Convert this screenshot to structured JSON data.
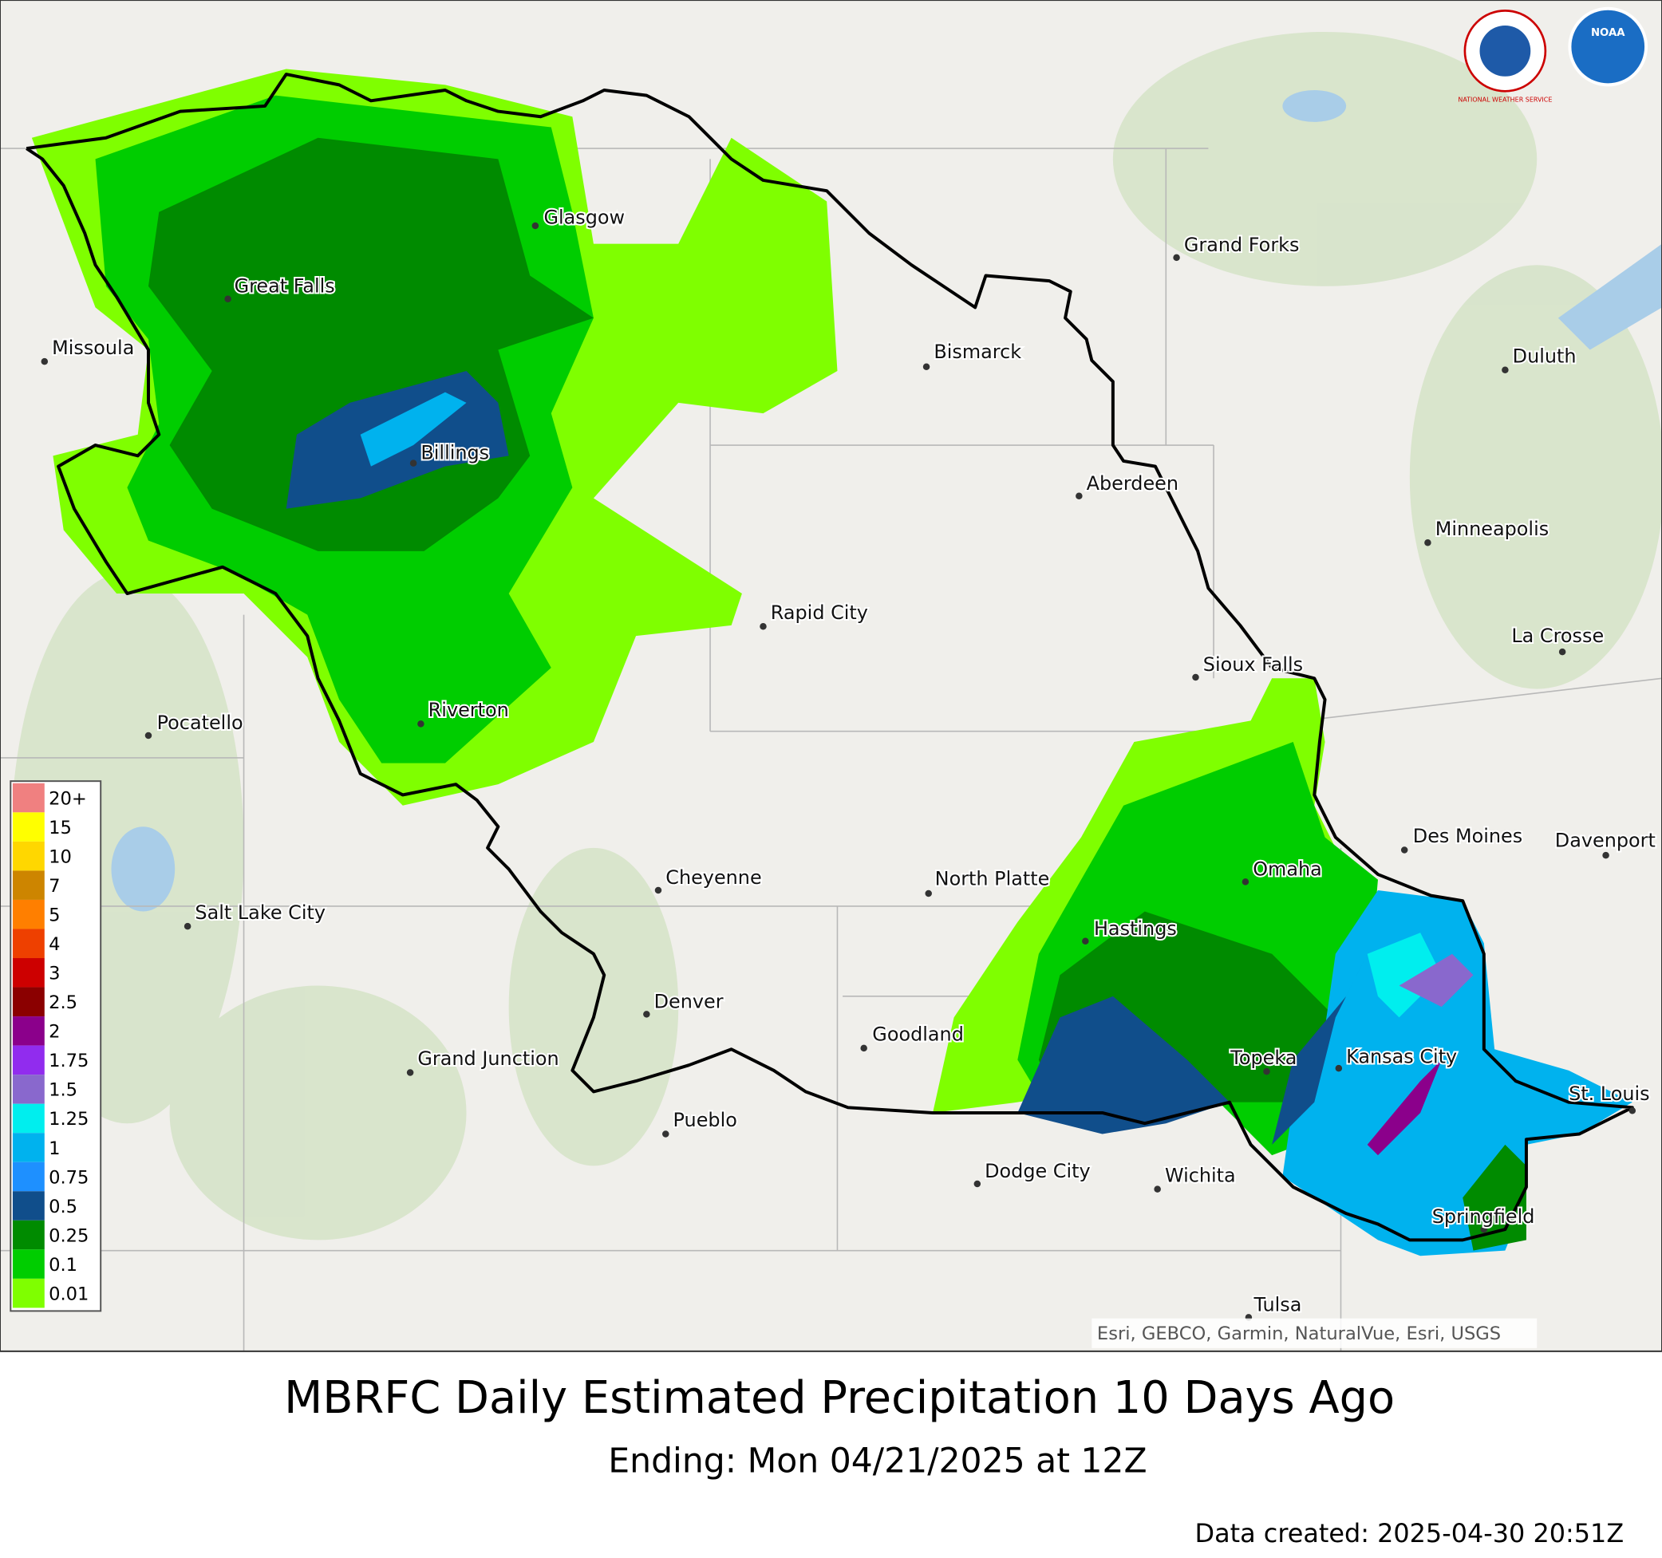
{
  "map": {
    "title": "MBRFC Daily Estimated Precipitation 10 Days Ago",
    "subtitle": "Ending: Mon 04/21/2025 at 12Z",
    "data_created": "Data created: 2025-04-30 20:51Z",
    "attribution": "Esri, GEBCO, Garmin, NaturalVue, Esri, USGS",
    "logos": [
      "NATIONAL WEATHER SERVICE",
      "NOAA"
    ],
    "cities": [
      "Glasgow",
      "Great Falls",
      "Missoula",
      "Billings",
      "Bismarck",
      "Grand Forks",
      "Duluth",
      "Aberdeen",
      "Minneapolis",
      "Rapid City",
      "Sioux Falls",
      "La Crosse",
      "Pocatello",
      "Riverton",
      "Des Moines",
      "Davenport",
      "Omaha",
      "Cheyenne",
      "North Platte",
      "Salt Lake City",
      "Hastings",
      "Denver",
      "Goodland",
      "Grand Junction",
      "Topeka",
      "Kansas City",
      "St. Louis",
      "Pueblo",
      "Dodge City",
      "Wichita",
      "Springfield",
      "Tulsa"
    ],
    "legend": [
      {
        "label": "20+",
        "color": "#f08080"
      },
      {
        "label": "15",
        "color": "#ffff00"
      },
      {
        "label": "10",
        "color": "#ffd700"
      },
      {
        "label": "7",
        "color": "#cd8500"
      },
      {
        "label": "5",
        "color": "#ff7f00"
      },
      {
        "label": "4",
        "color": "#ee4000"
      },
      {
        "label": "3",
        "color": "#cd0000"
      },
      {
        "label": "2.5",
        "color": "#8b0000"
      },
      {
        "label": "2",
        "color": "#8b008b"
      },
      {
        "label": "1.75",
        "color": "#912cee"
      },
      {
        "label": "1.5",
        "color": "#8968cd"
      },
      {
        "label": "1.25",
        "color": "#00eeee"
      },
      {
        "label": "1",
        "color": "#00b2ee"
      },
      {
        "label": "0.75",
        "color": "#1e90ff"
      },
      {
        "label": "0.5",
        "color": "#104e8b"
      },
      {
        "label": "0.25",
        "color": "#008b00"
      },
      {
        "label": "0.1",
        "color": "#00cd00"
      },
      {
        "label": "0.01",
        "color": "#7fff00"
      }
    ]
  }
}
